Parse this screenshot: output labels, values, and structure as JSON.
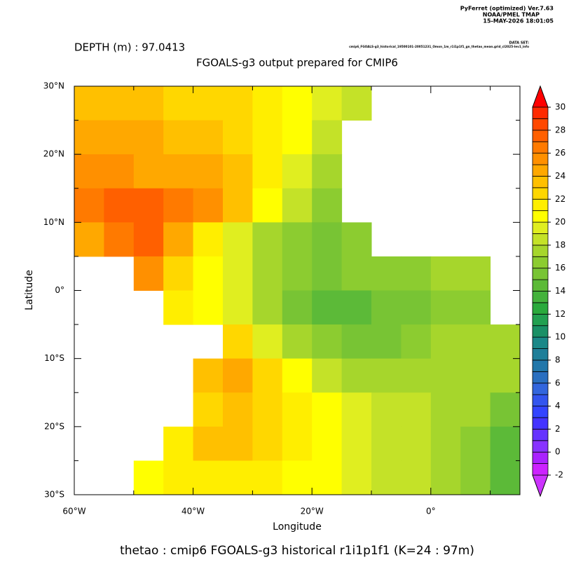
{
  "chart_data": {
    "type": "heatmap",
    "title": "FGOALS-g3 output prepared for CMIP6",
    "subtitle": "DEPTH (m) : 97.0413",
    "credits": [
      "PyFerret (optimized) Ver.7.63",
      "NOAA/PMEL TMAP",
      "15-MAY-2026 18:01:05"
    ],
    "dataset_label": "DATA SET:",
    "dataset": "cmip6_FGOALS-g3_historical_19500101-20051231_Omon_1m_r1i1p1f1_gn_thetao_mean.grid_cl2025-lev1_info",
    "footer": "thetao : cmip6 FGOALS-g3 historical r1i1p1f1   (K=24 : 97m)",
    "xlabel": "Longitude",
    "ylabel": "Latitude",
    "xlim": [
      -60,
      15
    ],
    "ylim": [
      -30,
      30
    ],
    "xticks": [
      {
        "value": -60,
        "label": "60°W"
      },
      {
        "value": -40,
        "label": "40°W"
      },
      {
        "value": -20,
        "label": "20°W"
      },
      {
        "value": 0,
        "label": "0°"
      }
    ],
    "xminor": [
      -50,
      -30,
      -10,
      10
    ],
    "yticks": [
      {
        "value": 30,
        "label": "30°N"
      },
      {
        "value": 20,
        "label": "20°N"
      },
      {
        "value": 10,
        "label": "10°N"
      },
      {
        "value": 0,
        "label": "0°"
      },
      {
        "value": -10,
        "label": "10°S"
      },
      {
        "value": -20,
        "label": "20°S"
      },
      {
        "value": -30,
        "label": "30°S"
      }
    ],
    "yminor": [
      25,
      15,
      5,
      -5,
      -15,
      -25
    ],
    "x": [
      -57.5,
      -52.5,
      -47.5,
      -42.5,
      -37.5,
      -32.5,
      -27.5,
      -22.5,
      -17.5,
      -12.5,
      -7.5,
      -2.5,
      2.5,
      7.5,
      12.5
    ],
    "y": [
      27.5,
      22.5,
      17.5,
      12.5,
      7.5,
      2.5,
      -2.5,
      -7.5,
      -12.5,
      -17.5,
      -22.5,
      -27.5
    ],
    "values": [
      [
        23,
        23,
        23,
        22,
        22,
        22,
        21,
        20,
        19,
        18,
        null,
        null,
        null,
        null,
        null
      ],
      [
        24,
        24,
        24,
        23,
        23,
        22,
        21,
        20,
        18,
        null,
        null,
        null,
        null,
        null,
        null
      ],
      [
        25,
        25,
        24,
        24,
        24,
        23,
        21,
        19,
        17,
        null,
        null,
        null,
        null,
        null,
        null
      ],
      [
        26,
        27,
        27,
        26,
        25,
        23,
        20,
        18,
        16,
        null,
        null,
        null,
        null,
        null,
        null
      ],
      [
        24,
        26,
        27,
        24,
        21,
        19,
        17,
        16,
        15,
        16,
        null,
        null,
        null,
        null,
        null
      ],
      [
        null,
        null,
        25,
        22,
        20,
        19,
        17,
        16,
        15,
        16,
        16,
        16,
        17,
        17,
        null
      ],
      [
        null,
        null,
        null,
        21,
        20,
        19,
        17,
        15,
        14,
        14,
        15,
        15,
        16,
        16,
        null
      ],
      [
        null,
        null,
        null,
        null,
        null,
        22,
        19,
        17,
        16,
        15,
        15,
        16,
        17,
        17,
        17
      ],
      [
        null,
        null,
        null,
        null,
        23,
        24,
        22,
        20,
        18,
        17,
        17,
        17,
        17,
        17,
        17
      ],
      [
        null,
        null,
        null,
        null,
        22,
        23,
        22,
        21,
        20,
        19,
        18,
        18,
        17,
        17,
        15
      ],
      [
        null,
        null,
        null,
        21,
        23,
        23,
        22,
        21,
        20,
        19,
        18,
        18,
        17,
        16,
        14
      ],
      [
        null,
        null,
        20,
        21,
        21,
        21,
        21,
        20,
        20,
        19,
        18,
        18,
        17,
        16,
        14
      ]
    ],
    "colorbar": {
      "levels": [
        -2,
        -1,
        0,
        1,
        2,
        3,
        4,
        5,
        6,
        7,
        8,
        9,
        10,
        11,
        12,
        13,
        14,
        15,
        16,
        17,
        18,
        19,
        20,
        21,
        22,
        23,
        24,
        25,
        26,
        27,
        28,
        29,
        30
      ],
      "ticks": [
        -2,
        0,
        2,
        4,
        6,
        8,
        10,
        12,
        14,
        16,
        18,
        20,
        22,
        24,
        26,
        28,
        30
      ],
      "colors": [
        "#cc22ff",
        "#aa22ff",
        "#8833ff",
        "#6633ff",
        "#4433ff",
        "#3344ff",
        "#3355ee",
        "#3366dd",
        "#2a6fc0",
        "#2277aa",
        "#1f7f99",
        "#1a8888",
        "#1a9066",
        "#22a050",
        "#2aaa3c",
        "#44b23c",
        "#5cba38",
        "#78c434",
        "#8ccc30",
        "#a6d62c",
        "#c4e228",
        "#e0ee20",
        "#ffff00",
        "#ffee00",
        "#ffd700",
        "#ffc000",
        "#ffa800",
        "#ff9000",
        "#ff7a00",
        "#ff6000",
        "#ff4800",
        "#ff2a00"
      ],
      "over_color": "#ff0000",
      "under_color": "#cc33ff"
    }
  }
}
